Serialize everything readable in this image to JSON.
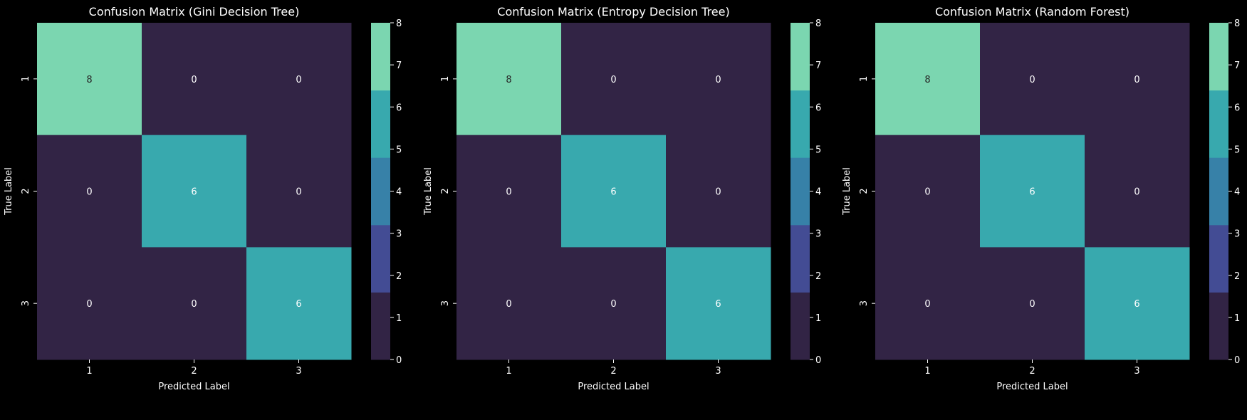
{
  "figure": {
    "background": "#000000",
    "text_color": "#ffffff"
  },
  "palette": {
    "steps": [
      {
        "range": [
          0,
          1.6
        ],
        "color": "#322445"
      },
      {
        "range": [
          1.6,
          3.2
        ],
        "color": "#434c94"
      },
      {
        "range": [
          3.2,
          4.8
        ],
        "color": "#3781a8"
      },
      {
        "range": [
          4.8,
          6.4
        ],
        "color": "#38a9ae"
      },
      {
        "range": [
          6.4,
          8
        ],
        "color": "#7bd6b0"
      }
    ],
    "dark_text_color": "#262626",
    "light_text_color": "#ffffff"
  },
  "chart_data": [
    {
      "type": "heatmap",
      "title": "Confusion Matrix (Gini Decision Tree)",
      "xlabel": "Predicted Label",
      "ylabel": "True Label",
      "x_categories": [
        "1",
        "2",
        "3"
      ],
      "y_categories": [
        "1",
        "2",
        "3"
      ],
      "values": [
        [
          8,
          0,
          0
        ],
        [
          0,
          6,
          0
        ],
        [
          0,
          0,
          6
        ]
      ],
      "colorbar": {
        "ticks": [
          "0",
          "1",
          "2",
          "3",
          "4",
          "5",
          "6",
          "7",
          "8"
        ],
        "range": [
          0,
          8
        ]
      }
    },
    {
      "type": "heatmap",
      "title": "Confusion Matrix (Entropy Decision Tree)",
      "xlabel": "Predicted Label",
      "ylabel": "True Label",
      "x_categories": [
        "1",
        "2",
        "3"
      ],
      "y_categories": [
        "1",
        "2",
        "3"
      ],
      "values": [
        [
          8,
          0,
          0
        ],
        [
          0,
          6,
          0
        ],
        [
          0,
          0,
          6
        ]
      ],
      "colorbar": {
        "ticks": [
          "0",
          "1",
          "2",
          "3",
          "4",
          "5",
          "6",
          "7",
          "8"
        ],
        "range": [
          0,
          8
        ]
      }
    },
    {
      "type": "heatmap",
      "title": "Confusion Matrix (Random Forest)",
      "xlabel": "Predicted Label",
      "ylabel": "True Label",
      "x_categories": [
        "1",
        "2",
        "3"
      ],
      "y_categories": [
        "1",
        "2",
        "3"
      ],
      "values": [
        [
          8,
          0,
          0
        ],
        [
          0,
          6,
          0
        ],
        [
          0,
          0,
          6
        ]
      ],
      "colorbar": {
        "ticks": [
          "0",
          "1",
          "2",
          "3",
          "4",
          "5",
          "6",
          "7",
          "8"
        ],
        "range": [
          0,
          8
        ]
      }
    }
  ]
}
